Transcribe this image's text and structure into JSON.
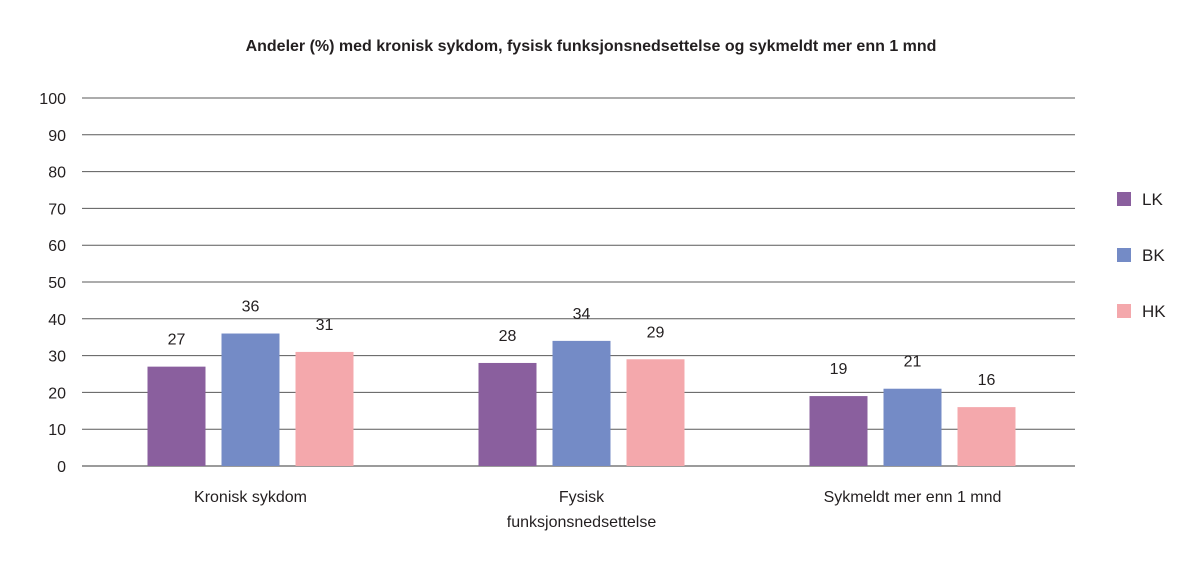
{
  "chart_data": {
    "type": "bar",
    "title": "Andeler (%) med kronisk sykdom, fysisk funksjonsnedsettelse og sykmeldt mer enn 1 mnd",
    "xlabel": "",
    "ylabel": "",
    "ylim": [
      0,
      100
    ],
    "yticks": [
      0,
      10,
      20,
      30,
      40,
      50,
      60,
      70,
      80,
      90,
      100
    ],
    "grid": true,
    "legend_position": "right",
    "categories": [
      [
        "Kronisk sykdom"
      ],
      [
        "Fysisk",
        "funksjonsnedsettelse"
      ],
      [
        "Sykmeldt mer enn 1 mnd"
      ]
    ],
    "category_names": [
      "Kronisk sykdom",
      "Fysisk funksjonsnedsettelse",
      "Sykmeldt mer enn 1 mnd"
    ],
    "series": [
      {
        "name": "LK",
        "color": "#8a5f9e",
        "values": [
          27,
          28,
          19
        ]
      },
      {
        "name": "BK",
        "color": "#748bc6",
        "values": [
          36,
          34,
          21
        ]
      },
      {
        "name": "HK",
        "color": "#f4a8ac",
        "values": [
          31,
          29,
          16
        ]
      }
    ],
    "data_labels": true
  },
  "colors": {
    "grid": "#5a5a5a",
    "text": "#231f20",
    "background": "#ffffff"
  }
}
